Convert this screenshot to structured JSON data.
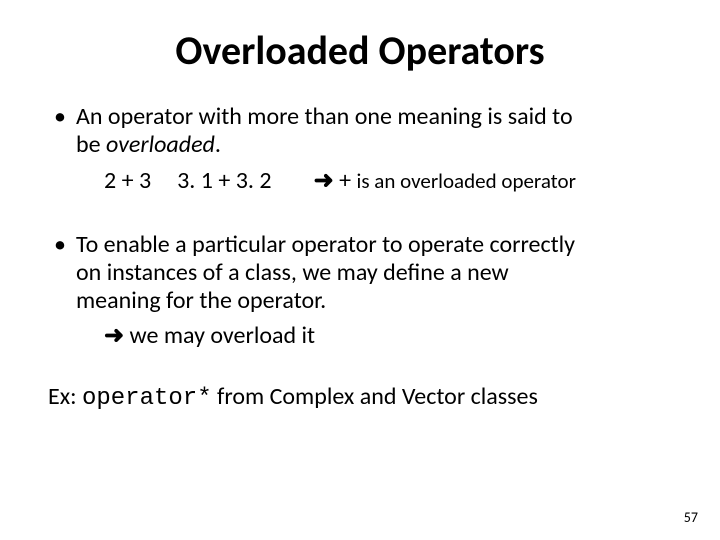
{
  "title": "Overloaded Operators",
  "bullet1": {
    "line1": "An operator with more than one meaning is said to",
    "line2_pre": "be ",
    "line2_em": "overloaded",
    "line2_post": ".",
    "expr1": "2 + 3",
    "expr2": "3. 1 + 3. 2",
    "arrow": "➜",
    "note_pre": "  +  ",
    "note_rest": "is an overloaded operator"
  },
  "bullet2": {
    "line1": "To enable a particular operator to operate correctly",
    "line2": "on instances of a class, we may define a new",
    "line3": "meaning for the operator.",
    "sub_arrow": "➜",
    "sub_text": " we may overload it"
  },
  "ex": {
    "label": "Ex: ",
    "code": "operator*",
    "rest": "  from Complex and Vector classes"
  },
  "pagenum": "57",
  "colors": {
    "background": "#ffffff",
    "text": "#000000"
  },
  "fontsizes": {
    "title": 40,
    "body": 24,
    "small": 21,
    "pagenum": 14
  }
}
